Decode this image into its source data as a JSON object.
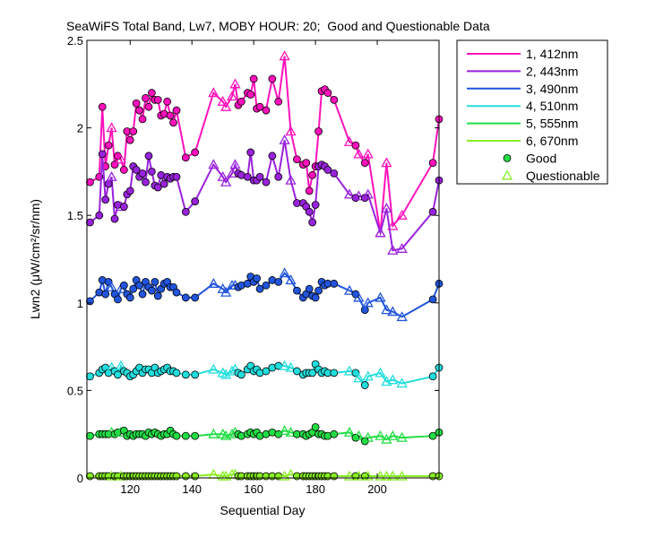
{
  "chart_data": {
    "type": "line",
    "title": "SeaWiFS Total Band, Lw7, MOBY HOUR: 20;  Good and Questionable Data",
    "xlabel": "Sequential Day",
    "ylabel": "Lwn2 (μW/cm²/sr/nm)",
    "xlim": [
      106,
      220
    ],
    "ylim": [
      0,
      2.5
    ],
    "xticks": [
      120,
      140,
      160,
      180,
      200
    ],
    "xtick_labels": [
      "120",
      "140",
      "160",
      "180",
      "200"
    ],
    "yticks": [
      0,
      0.5,
      1,
      1.5,
      2,
      2.5
    ],
    "ytick_labels": [
      "0",
      "0.5",
      "1",
      "1.5",
      "2",
      "2.5"
    ],
    "grid": false,
    "legend_position": "outside-right",
    "x": [
      107,
      110,
      111,
      112,
      113,
      114,
      115,
      116,
      117,
      118,
      119,
      120,
      121,
      122,
      123,
      124,
      125,
      126,
      127,
      128,
      129,
      130,
      131,
      132,
      133,
      134,
      135,
      138,
      141,
      147,
      150,
      151,
      153,
      154,
      155,
      156,
      158,
      159,
      160,
      161,
      162,
      164,
      166,
      168,
      170,
      172,
      174,
      176,
      177,
      178,
      179,
      180,
      181,
      182,
      183,
      184,
      186,
      191,
      193,
      194,
      196,
      197,
      201,
      203,
      205,
      208,
      218,
      220
    ],
    "good": [
      1,
      1,
      1,
      1,
      1,
      0,
      1,
      1,
      0,
      1,
      1,
      1,
      1,
      1,
      1,
      1,
      1,
      1,
      1,
      1,
      1,
      1,
      1,
      1,
      1,
      1,
      1,
      1,
      1,
      0,
      0,
      0,
      0,
      0,
      1,
      1,
      1,
      1,
      1,
      1,
      1,
      1,
      1,
      1,
      0,
      0,
      1,
      1,
      1,
      1,
      1,
      1,
      1,
      1,
      1,
      1,
      1,
      0,
      1,
      0,
      1,
      0,
      0,
      0,
      0,
      0,
      1,
      1
    ],
    "series": [
      {
        "name": "1, 412nm",
        "color": "#ff11bb",
        "values": [
          1.69,
          1.72,
          2.12,
          1.78,
          1.9,
          2.0,
          1.79,
          1.84,
          1.82,
          1.76,
          1.98,
          1.93,
          1.98,
          2.14,
          2.1,
          2.05,
          2.17,
          2.12,
          2.2,
          2.16,
          2.16,
          2.07,
          2.08,
          2.15,
          2.07,
          2.03,
          2.1,
          1.83,
          1.86,
          2.2,
          2.15,
          2.12,
          2.18,
          2.25,
          2.13,
          2.15,
          2.2,
          2.19,
          2.28,
          2.11,
          2.12,
          2.1,
          2.28,
          2.15,
          2.41,
          1.98,
          1.82,
          1.79,
          1.8,
          1.64,
          1.73,
          1.78,
          1.98,
          2.21,
          2.22,
          2.2,
          2.16,
          1.92,
          1.9,
          1.85,
          1.8,
          1.85,
          1.4,
          1.8,
          1.44,
          1.5,
          1.8,
          2.05
        ]
      },
      {
        "name": "2, 443nm",
        "color": "#9922dd",
        "values": [
          1.46,
          1.5,
          1.85,
          1.59,
          1.68,
          1.72,
          1.48,
          1.56,
          1.55,
          1.55,
          1.62,
          1.64,
          1.78,
          1.76,
          1.72,
          1.74,
          1.69,
          1.84,
          1.75,
          1.67,
          1.66,
          1.73,
          1.68,
          1.72,
          1.71,
          1.72,
          1.72,
          1.52,
          1.58,
          1.79,
          1.72,
          1.69,
          1.74,
          1.79,
          1.74,
          1.73,
          1.72,
          1.86,
          1.7,
          1.7,
          1.72,
          1.69,
          1.84,
          1.72,
          1.93,
          1.7,
          1.57,
          1.57,
          1.55,
          1.52,
          1.46,
          1.56,
          1.78,
          1.79,
          1.78,
          1.76,
          1.74,
          1.62,
          1.6,
          1.61,
          1.6,
          1.62,
          1.4,
          1.54,
          1.3,
          1.31,
          1.52,
          1.7
        ]
      },
      {
        "name": "3, 490nm",
        "color": "#2255dd",
        "values": [
          1.01,
          1.06,
          1.13,
          1.05,
          1.12,
          1.09,
          1.05,
          1.02,
          1.08,
          1.1,
          1.05,
          1.03,
          1.08,
          1.13,
          1.1,
          1.05,
          1.12,
          1.09,
          1.07,
          1.12,
          1.04,
          1.08,
          1.11,
          1.12,
          1.09,
          1.09,
          1.06,
          1.03,
          1.03,
          1.11,
          1.08,
          1.06,
          1.1,
          1.1,
          1.09,
          1.1,
          1.11,
          1.15,
          1.12,
          1.14,
          1.08,
          1.1,
          1.13,
          1.12,
          1.17,
          1.13,
          1.07,
          1.03,
          1.05,
          1.08,
          1.04,
          1.03,
          1.07,
          1.12,
          1.1,
          1.11,
          1.11,
          1.07,
          1.05,
          1.03,
          0.96,
          1.0,
          1.03,
          0.96,
          0.95,
          0.92,
          1.02,
          1.11
        ]
      },
      {
        "name": "4, 510nm",
        "color": "#22dddd",
        "values": [
          0.58,
          0.6,
          0.62,
          0.63,
          0.6,
          0.63,
          0.61,
          0.59,
          0.64,
          0.61,
          0.6,
          0.58,
          0.59,
          0.61,
          0.63,
          0.6,
          0.62,
          0.62,
          0.6,
          0.63,
          0.6,
          0.61,
          0.62,
          0.63,
          0.61,
          0.61,
          0.6,
          0.59,
          0.59,
          0.62,
          0.6,
          0.59,
          0.61,
          0.62,
          0.6,
          0.59,
          0.62,
          0.64,
          0.61,
          0.62,
          0.6,
          0.61,
          0.63,
          0.64,
          0.64,
          0.63,
          0.61,
          0.59,
          0.6,
          0.6,
          0.6,
          0.65,
          0.62,
          0.6,
          0.61,
          0.6,
          0.6,
          0.61,
          0.6,
          0.57,
          0.53,
          0.58,
          0.6,
          0.55,
          0.56,
          0.54,
          0.58,
          0.63
        ]
      },
      {
        "name": "5, 555nm",
        "color": "#22dd44",
        "values": [
          0.24,
          0.25,
          0.25,
          0.25,
          0.25,
          0.26,
          0.25,
          0.26,
          0.26,
          0.27,
          0.24,
          0.25,
          0.24,
          0.25,
          0.25,
          0.25,
          0.24,
          0.26,
          0.25,
          0.26,
          0.25,
          0.24,
          0.25,
          0.25,
          0.27,
          0.25,
          0.24,
          0.24,
          0.24,
          0.25,
          0.25,
          0.24,
          0.25,
          0.26,
          0.25,
          0.24,
          0.25,
          0.26,
          0.25,
          0.26,
          0.24,
          0.25,
          0.26,
          0.25,
          0.27,
          0.26,
          0.25,
          0.25,
          0.24,
          0.25,
          0.26,
          0.29,
          0.25,
          0.25,
          0.24,
          0.24,
          0.25,
          0.26,
          0.23,
          0.24,
          0.21,
          0.23,
          0.24,
          0.22,
          0.24,
          0.23,
          0.24,
          0.26
        ]
      },
      {
        "name": "6, 670nm",
        "color": "#88ee22",
        "values": [
          0.01,
          0.01,
          0.01,
          0.01,
          0.01,
          0.01,
          0.01,
          0.01,
          0.01,
          0.01,
          0.01,
          0.01,
          0.01,
          0.01,
          0.01,
          0.01,
          0.01,
          0.01,
          0.01,
          0.01,
          0.01,
          0.01,
          0.01,
          0.01,
          0.01,
          0.01,
          0.01,
          0.01,
          0.01,
          0.02,
          0.01,
          0.01,
          0.02,
          0.02,
          0.01,
          0.01,
          0.01,
          0.01,
          0.01,
          0.01,
          0.01,
          0.01,
          0.01,
          0.01,
          0.01,
          0.02,
          0.01,
          0.01,
          0.01,
          0.01,
          0.01,
          0.01,
          0.01,
          0.01,
          0.01,
          0.01,
          0.01,
          0.01,
          0.01,
          0.01,
          0.01,
          0.01,
          0.01,
          0.01,
          0.01,
          0.01,
          0.01,
          0.01
        ]
      }
    ],
    "markers": {
      "good_label": "Good",
      "questionable_label": "Questionable"
    }
  }
}
